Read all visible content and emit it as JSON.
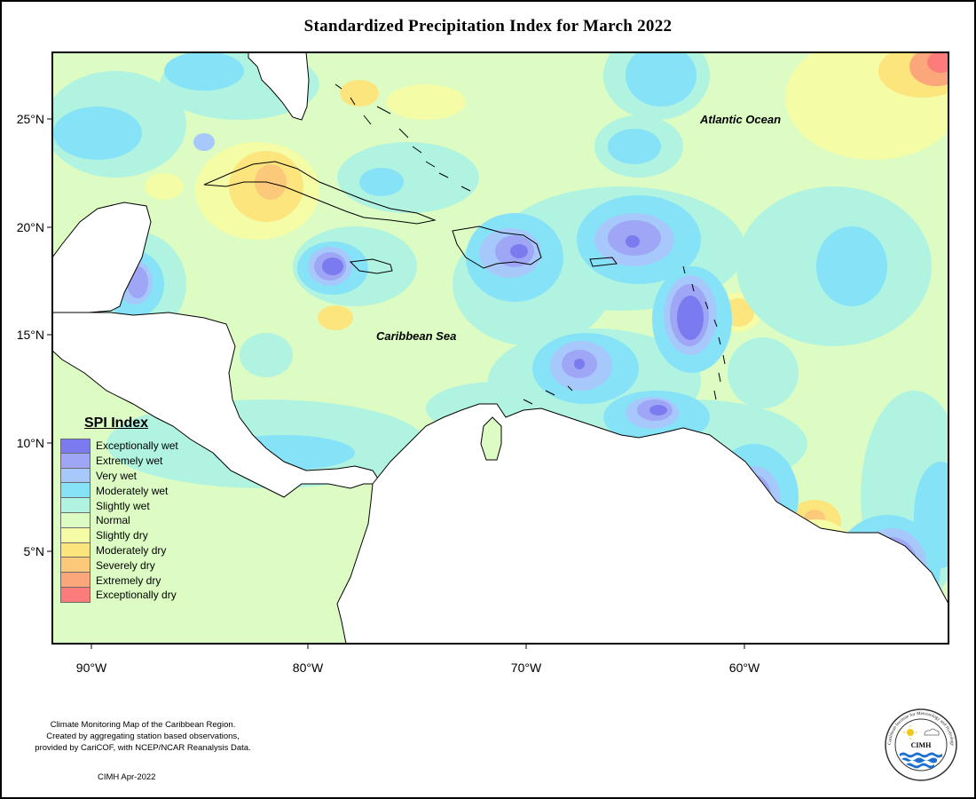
{
  "title": "Standardized Precipitation Index for March 2022",
  "ocean_labels": {
    "atlantic": "Atlantic Ocean",
    "caribbean": "Caribbean Sea"
  },
  "lat_labels": [
    "25°N",
    "20°N",
    "15°N",
    "10°N",
    "5°N"
  ],
  "lon_labels": [
    "90°W",
    "80°W",
    "70°W",
    "60°W"
  ],
  "legend": {
    "title": "SPI Index",
    "items": [
      {
        "label": "Exceptionally wet",
        "color": "#7b7bef"
      },
      {
        "label": "Extremely wet",
        "color": "#9ea6f5"
      },
      {
        "label": "Very wet",
        "color": "#a6c8fa"
      },
      {
        "label": "Moderately wet",
        "color": "#86e2f7"
      },
      {
        "label": "Slightly wet",
        "color": "#b0f3e0"
      },
      {
        "label": "Normal",
        "color": "#dcfcc4"
      },
      {
        "label": "Slightly dry",
        "color": "#f4fca6"
      },
      {
        "label": "Moderately dry",
        "color": "#fce57c"
      },
      {
        "label": "Severely dry",
        "color": "#fcc87a"
      },
      {
        "label": "Extremely dry",
        "color": "#fca67c"
      },
      {
        "label": "Exceptionally dry",
        "color": "#fc7b7b"
      }
    ]
  },
  "footer": {
    "line1": "Climate Monitoring Map of the Caribbean Region.",
    "line2": "Created by aggregating station based observations,",
    "line3": "provided by CariCOF, with NCEP/NCAR Reanalysis Data.",
    "date": "CIMH Apr-2022"
  },
  "logo": {
    "text": "CIMH",
    "ring_text": "Caribbean Institute for Meteorology and Hydrology"
  }
}
